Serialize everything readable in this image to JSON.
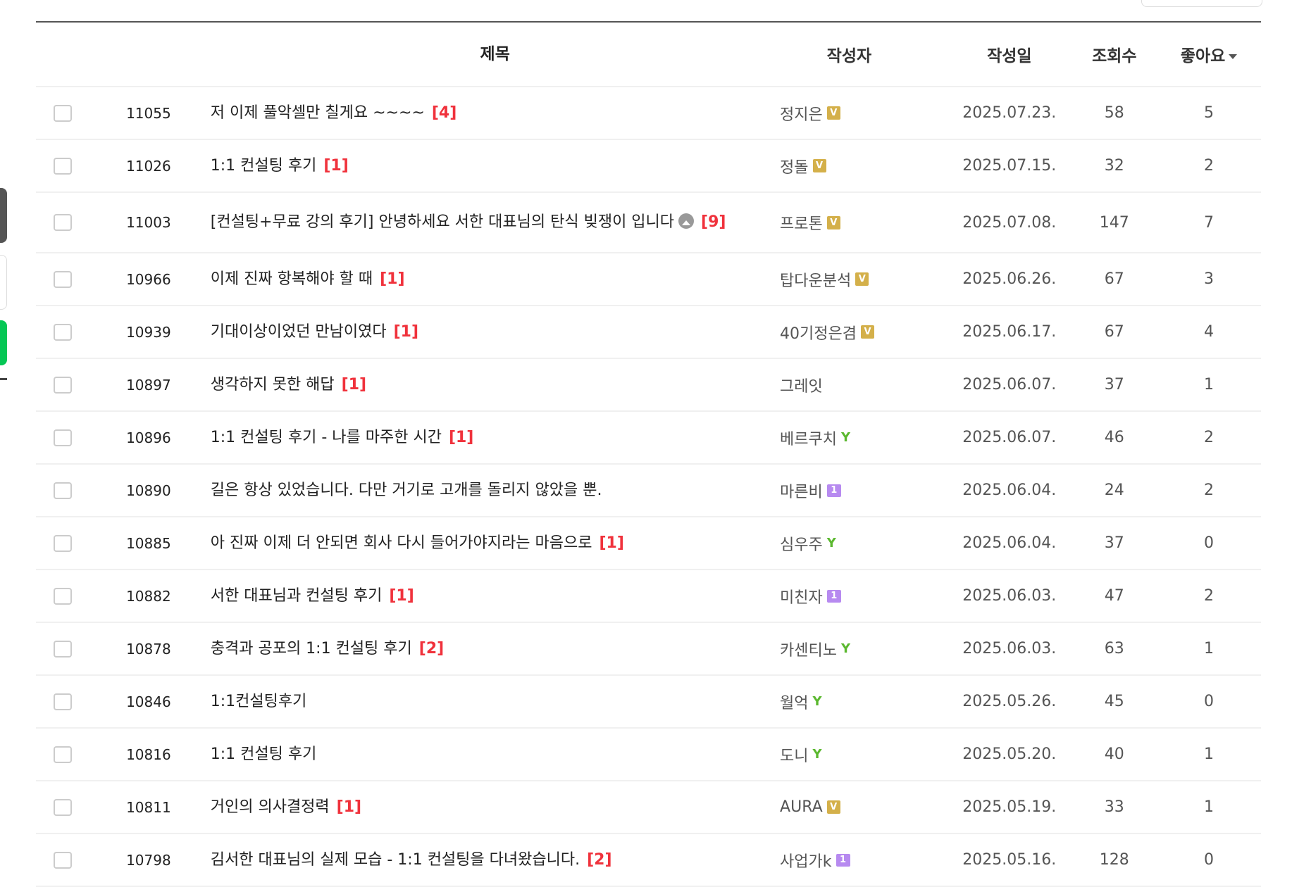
{
  "header": {
    "checkbox": "",
    "no": "",
    "title": "제목",
    "author": "작성자",
    "date": "작성일",
    "views": "조회수",
    "likes": "좋아요"
  },
  "colors": {
    "comment_count": "#f0323c",
    "badge_v": "#d4b04a",
    "badge_1": "#b78af0",
    "sprout": "#5bb82f",
    "side_green": "#06c755"
  },
  "rows": [
    {
      "no": "11055",
      "title": "저 이제 풀악셀만 칠게요 ~~~~",
      "comments": "[4]",
      "author": "정지은",
      "badge": "V",
      "date": "2025.07.23.",
      "views": "58",
      "likes": "5"
    },
    {
      "no": "11026",
      "title": "1:1 컨설팅 후기",
      "comments": "[1]",
      "author": "정돌",
      "badge": "V",
      "date": "2025.07.15.",
      "views": "32",
      "likes": "2"
    },
    {
      "no": "11003",
      "title": "[컨설팅+무료 강의 후기] 안녕하세요 서한 대표님의 탄식 빚쟁이 입니다",
      "comments": "[9]",
      "author": "프로톤",
      "badge": "V",
      "date": "2025.07.08.",
      "views": "147",
      "likes": "7",
      "image": true
    },
    {
      "no": "10966",
      "title": "이제 진짜 항복해야 할 때",
      "comments": "[1]",
      "author": "탑다운분석",
      "badge": "V",
      "date": "2025.06.26.",
      "views": "67",
      "likes": "3"
    },
    {
      "no": "10939",
      "title": "기대이상이었던 만남이였다",
      "comments": "[1]",
      "author": "40기정은겸",
      "badge": "V",
      "date": "2025.06.17.",
      "views": "67",
      "likes": "4"
    },
    {
      "no": "10897",
      "title": "생각하지 못한 해답",
      "comments": "[1]",
      "author": "그레잇",
      "badge": "",
      "date": "2025.06.07.",
      "views": "37",
      "likes": "1"
    },
    {
      "no": "10896",
      "title": "1:1 컨설팅 후기 - 나를 마주한 시간",
      "comments": "[1]",
      "author": "베르쿠치",
      "badge": "sprout",
      "date": "2025.06.07.",
      "views": "46",
      "likes": "2"
    },
    {
      "no": "10890",
      "title": "길은 항상 있었습니다. 다만 거기로 고개를 돌리지 않았을 뿐.",
      "comments": "",
      "author": "마른비",
      "badge": "1",
      "date": "2025.06.04.",
      "views": "24",
      "likes": "2"
    },
    {
      "no": "10885",
      "title": "아 진짜 이제 더 안되면 회사 다시 들어가야지라는 마음으로",
      "comments": "[1]",
      "author": "심우주",
      "badge": "sprout",
      "date": "2025.06.04.",
      "views": "37",
      "likes": "0"
    },
    {
      "no": "10882",
      "title": "서한 대표님과 컨설팅 후기",
      "comments": "[1]",
      "author": "미친자",
      "badge": "1",
      "date": "2025.06.03.",
      "views": "47",
      "likes": "2"
    },
    {
      "no": "10878",
      "title": "충격과 공포의 1:1 컨설팅 후기",
      "comments": "[2]",
      "author": "카센티노",
      "badge": "sprout",
      "date": "2025.06.03.",
      "views": "63",
      "likes": "1"
    },
    {
      "no": "10846",
      "title": "1:1컨설팅후기",
      "comments": "",
      "author": "월억",
      "badge": "sprout",
      "date": "2025.05.26.",
      "views": "45",
      "likes": "0"
    },
    {
      "no": "10816",
      "title": "1:1 컨설팅 후기",
      "comments": "",
      "author": "도니",
      "badge": "sprout",
      "date": "2025.05.20.",
      "views": "40",
      "likes": "1"
    },
    {
      "no": "10811",
      "title": "거인의 의사결정력",
      "comments": "[1]",
      "author": "AURA",
      "badge": "V",
      "date": "2025.05.19.",
      "views": "33",
      "likes": "1"
    },
    {
      "no": "10798",
      "title": "김서한 대표님의 실제 모습 - 1:1 컨설팅을 다녀왔습니다.",
      "comments": "[2]",
      "author": "사업가k",
      "badge": "1",
      "date": "2025.05.16.",
      "views": "128",
      "likes": "0"
    }
  ]
}
